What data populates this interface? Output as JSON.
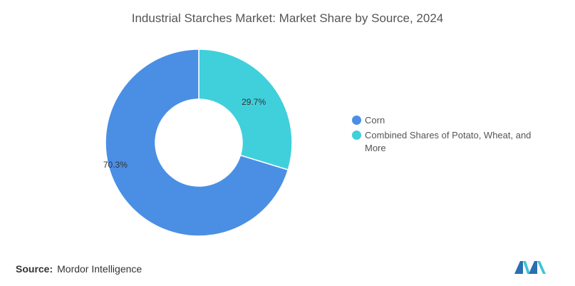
{
  "title": "Industrial Starches Market: Market Share by Source, 2024",
  "source": {
    "label": "Source:",
    "text": "Mordor Intelligence"
  },
  "colors": {
    "corn": "#4a8fe4",
    "others": "#3fd0dc"
  },
  "chart_data": {
    "type": "pie",
    "donut": true,
    "title": "Industrial Starches Market: Market Share by Source, 2024",
    "slices": [
      {
        "label": "Corn",
        "value": 70.3,
        "display": "70.3%",
        "color": "#4a8fe4"
      },
      {
        "label": "Combined Shares of Potato, Wheat, and More",
        "value": 29.7,
        "display": "29.7%",
        "color": "#3fd0dc"
      }
    ],
    "legend_position": "right"
  }
}
